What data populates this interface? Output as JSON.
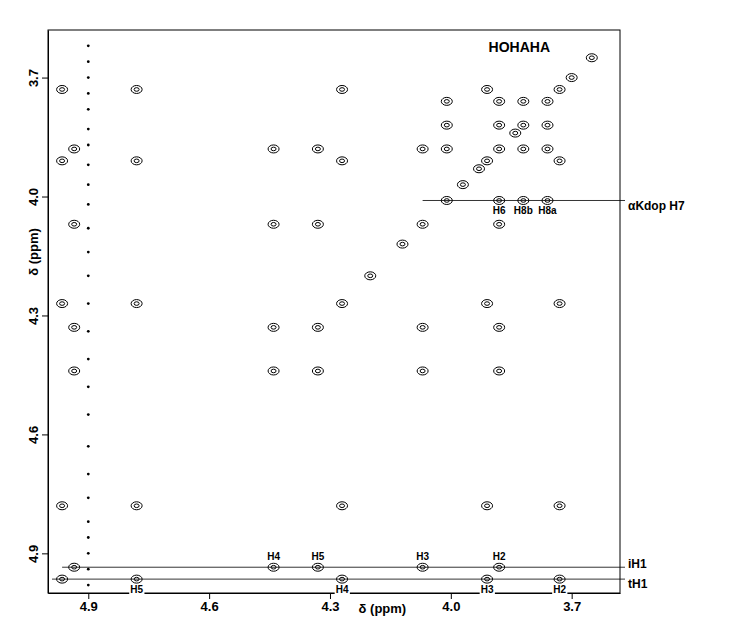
{
  "chart_data": {
    "type": "contour",
    "title": "HOHAHA",
    "x_label": "δ (ppm)",
    "y_label": "δ (ppm)",
    "xlim": [
      5.0,
      3.58
    ],
    "ylim": [
      3.58,
      5.0
    ],
    "xticks": [
      4.9,
      4.6,
      4.3,
      {
        "value": 4,
        "label": "4.0"
      },
      3.7
    ],
    "yticks": [
      3.7,
      {
        "value": 4,
        "label": "4.0"
      },
      4.3,
      4.6,
      4.9
    ],
    "grid": false,
    "color": "#000000",
    "series": [
      {
        "marker": "contour",
        "x": [
          4.965,
          4.935,
          4.78,
          4.44,
          4.33,
          4.27,
          4.2,
          4.12,
          4.07,
          4.01,
          3.97,
          3.93,
          3.91,
          3.88,
          3.84,
          3.82,
          3.76,
          3.73,
          3.7,
          3.65,
          4.965,
          4.965,
          4.965,
          4.965,
          4.78,
          4.78,
          4.78,
          4.78,
          4.27,
          4.27,
          4.27,
          4.27,
          3.91,
          3.91,
          3.91,
          3.91,
          3.73,
          3.73,
          3.73,
          3.73,
          4.935,
          4.935,
          4.935,
          4.935,
          4.44,
          4.44,
          4.44,
          4.44,
          4.33,
          4.33,
          4.33,
          4.33,
          4.07,
          4.07,
          4.07,
          4.07,
          3.88,
          3.88,
          3.88,
          3.88,
          4.01,
          4.01,
          4.01,
          3.88,
          3.82,
          3.76,
          3.88,
          3.82,
          3.88,
          3.76,
          3.82,
          3.76
        ],
        "values": [
          4.965,
          4.935,
          4.78,
          4.44,
          4.33,
          4.27,
          4.2,
          4.12,
          4.07,
          4.01,
          3.97,
          3.93,
          3.91,
          3.88,
          3.84,
          3.82,
          3.76,
          3.73,
          3.7,
          3.65,
          4.78,
          4.27,
          3.91,
          3.73,
          4.965,
          4.27,
          3.91,
          3.73,
          4.965,
          4.78,
          3.91,
          3.73,
          4.965,
          4.78,
          4.27,
          3.73,
          4.965,
          4.78,
          4.27,
          3.91,
          4.44,
          4.33,
          4.07,
          3.88,
          4.935,
          4.33,
          4.07,
          3.88,
          4.935,
          4.44,
          4.07,
          3.88,
          4.935,
          4.44,
          4.33,
          3.88,
          4.935,
          4.44,
          4.33,
          4.07,
          3.88,
          3.82,
          3.76,
          4.01,
          4.01,
          4.01,
          3.82,
          3.88,
          3.76,
          3.88,
          3.76,
          3.82
        ]
      },
      {
        "marker": "dot",
        "x": [
          4.9,
          4.9,
          4.9,
          4.9,
          4.9,
          4.9,
          4.9,
          4.9,
          4.9,
          4.9,
          4.9,
          4.9,
          4.9,
          4.9,
          4.9,
          4.9,
          4.9,
          4.9,
          4.9,
          4.9,
          4.9,
          4.9,
          4.9,
          4.9,
          4.9,
          4.9
        ],
        "values": [
          3.62,
          3.66,
          3.7,
          3.74,
          3.78,
          3.83,
          3.87,
          3.92,
          3.97,
          4.02,
          4.08,
          4.14,
          4.2,
          4.27,
          4.34,
          4.41,
          4.48,
          4.55,
          4.63,
          4.7,
          4.76,
          4.82,
          4.86,
          4.9,
          4.94,
          4.98
        ]
      }
    ],
    "annotations": [
      {
        "text": "iH1",
        "y": 4.935,
        "from": 4.965,
        "labels": [
          {
            "text": "H4",
            "x": 4.44
          },
          {
            "text": "H5",
            "x": 4.33
          },
          {
            "text": "H3",
            "x": 4.07
          },
          {
            "text": "H2",
            "x": 3.88
          }
        ]
      },
      {
        "text": "tH1",
        "y": 4.965,
        "from": 4.99,
        "labels": [
          {
            "text": "H5",
            "x": 4.78
          },
          {
            "text": "H4",
            "x": 4.27
          },
          {
            "text": "H3",
            "x": 3.91
          },
          {
            "text": "H2",
            "x": 3.73
          }
        ]
      },
      {
        "text": "αKdop H7",
        "y": 4.01,
        "from": 4.07,
        "labels": [
          {
            "text": "H6",
            "x": 3.88
          },
          {
            "text": "H8b",
            "x": 3.82
          },
          {
            "text": "H8a",
            "x": 3.76
          }
        ]
      }
    ]
  }
}
